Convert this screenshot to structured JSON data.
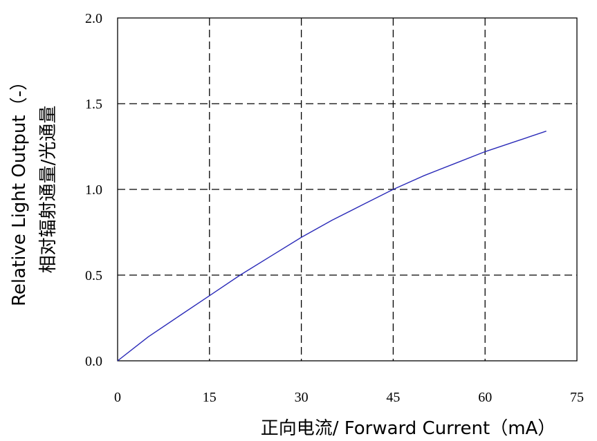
{
  "chart_data": {
    "type": "line",
    "title": "",
    "xlabel": "正向电流/ Forward Current（mA）",
    "ylabel_lines": [
      "Relative Light Output（-）",
      "相对辐射通量/光通量"
    ],
    "xlim": [
      0,
      75
    ],
    "ylim": [
      0,
      2.0
    ],
    "x_ticks": [
      0,
      15,
      30,
      45,
      60,
      75
    ],
    "x_tick_labels": [
      "0",
      "15",
      "30",
      "45",
      "60",
      "75"
    ],
    "y_ticks": [
      0,
      0.5,
      1.0,
      1.5,
      2.0
    ],
    "y_tick_labels": [
      "0.0",
      "0.5",
      "1.0",
      "1.5",
      "2.0"
    ],
    "grid": true,
    "grid_style": "dashed",
    "legend": "none",
    "series": [
      {
        "color": "#2a2ab8",
        "x": [
          0,
          5,
          10,
          15,
          20,
          25,
          30,
          35,
          40,
          45,
          50,
          55,
          60,
          65,
          70
        ],
        "y": [
          0,
          0.14,
          0.26,
          0.38,
          0.5,
          0.61,
          0.72,
          0.82,
          0.91,
          1.0,
          1.08,
          1.15,
          1.22,
          1.28,
          1.34
        ]
      }
    ]
  }
}
